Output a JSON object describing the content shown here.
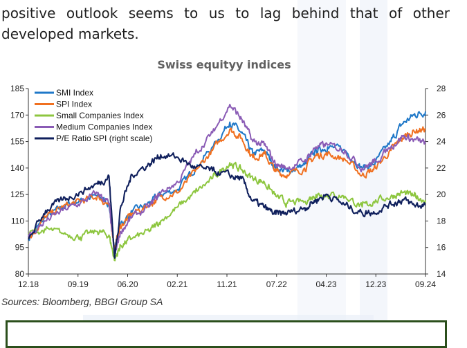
{
  "intro_text": "positive outlook seems to us to lag behind that of other developed markets.",
  "source": "Sources: Bloomberg, BBGI Group SA",
  "chart_data": {
    "type": "line",
    "title": "Swiss equityy indices",
    "left_axis": {
      "ylim": [
        80,
        185
      ],
      "ticks": [
        "80",
        "95",
        "110",
        "125",
        "140",
        "155",
        "170",
        "185"
      ]
    },
    "right_axis": {
      "ylim": [
        14,
        28
      ],
      "ticks": [
        "14",
        "16",
        "18",
        "20",
        "22",
        "24",
        "26",
        "28"
      ]
    },
    "x_ticks": [
      "12.18",
      "09.19",
      "06.20",
      "02.21",
      "11.21",
      "07.22",
      "04.23",
      "12.23",
      "09.24"
    ],
    "legend_position": "top-left",
    "grid": false,
    "x": [
      "12.18",
      "03.19",
      "06.19",
      "09.19",
      "12.19",
      "02.20",
      "03.20",
      "04.20",
      "06.20",
      "09.20",
      "11.20",
      "02.21",
      "05.21",
      "08.21",
      "11.21",
      "01.22",
      "03.22",
      "05.22",
      "07.22",
      "09.22",
      "12.22",
      "02.23",
      "04.23",
      "07.23",
      "10.23",
      "12.23",
      "03.24",
      "05.24",
      "07.24",
      "09.24"
    ],
    "series": [
      {
        "name": "SMI Index",
        "color": "#1f78c8",
        "axis": "left",
        "values": [
          100,
          112,
          118,
          122,
          124,
          120,
          95,
          108,
          115,
          120,
          125,
          128,
          140,
          152,
          166,
          160,
          148,
          150,
          140,
          138,
          142,
          150,
          152,
          150,
          140,
          142,
          155,
          165,
          170,
          172
        ]
      },
      {
        "name": "SPI Index",
        "color": "#f07020",
        "axis": "left",
        "values": [
          100,
          112,
          118,
          121,
          124,
          119,
          94,
          107,
          114,
          119,
          124,
          126,
          138,
          150,
          162,
          157,
          146,
          148,
          138,
          136,
          140,
          147,
          148,
          145,
          136,
          139,
          150,
          157,
          161,
          162
        ]
      },
      {
        "name": "Small Companies Index",
        "color": "#8dc63f",
        "axis": "left",
        "values": [
          103,
          105,
          103,
          101,
          104,
          102,
          88,
          96,
          100,
          104,
          110,
          118,
          126,
          134,
          143,
          139,
          134,
          132,
          124,
          120,
          121,
          125,
          125,
          124,
          118,
          121,
          124,
          126,
          124,
          122
        ]
      },
      {
        "name": "Medium Companies Index",
        "color": "#8a5bb5",
        "axis": "left",
        "values": [
          101,
          110,
          116,
          120,
          126,
          120,
          90,
          104,
          112,
          118,
          126,
          132,
          148,
          160,
          176,
          168,
          155,
          153,
          142,
          140,
          144,
          152,
          153,
          150,
          140,
          143,
          152,
          158,
          156,
          154
        ]
      },
      {
        "name": "P/E Ratio SPI (right scale)",
        "color": "#0f1f5c",
        "axis": "right",
        "values": [
          16.6,
          18.8,
          19.6,
          20.2,
          20.8,
          21.4,
          15.2,
          19.0,
          21.5,
          22.3,
          23.0,
          22.8,
          22.0,
          21.8,
          21.4,
          21.2,
          19.5,
          19.0,
          18.5,
          18.6,
          19.0,
          19.6,
          20.0,
          19.2,
          18.6,
          18.7,
          19.3,
          19.6,
          19.2,
          19.2
        ]
      }
    ]
  }
}
